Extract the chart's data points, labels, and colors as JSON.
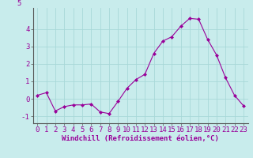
{
  "x": [
    0,
    1,
    2,
    3,
    4,
    5,
    6,
    7,
    8,
    9,
    10,
    11,
    12,
    13,
    14,
    15,
    16,
    17,
    18,
    19,
    20,
    21,
    22,
    23
  ],
  "y": [
    0.2,
    0.35,
    -0.7,
    -0.45,
    -0.35,
    -0.35,
    -0.3,
    -0.75,
    -0.85,
    -0.15,
    0.6,
    1.1,
    1.4,
    2.6,
    3.3,
    3.55,
    4.15,
    4.6,
    4.55,
    3.4,
    2.5,
    1.2,
    0.2,
    -0.4
  ],
  "line_color": "#990099",
  "marker": "D",
  "marker_size": 2,
  "bg_color": "#c8ecec",
  "grid_color": "#a8d8d8",
  "xlabel": "Windchill (Refroidissement éolien,°C)",
  "yticks": [
    -1,
    0,
    1,
    2,
    3,
    4
  ],
  "ylim": [
    -1.4,
    5.2
  ],
  "xlim": [
    -0.5,
    23.5
  ],
  "xlabel_fontsize": 6.5,
  "tick_fontsize": 6.5
}
